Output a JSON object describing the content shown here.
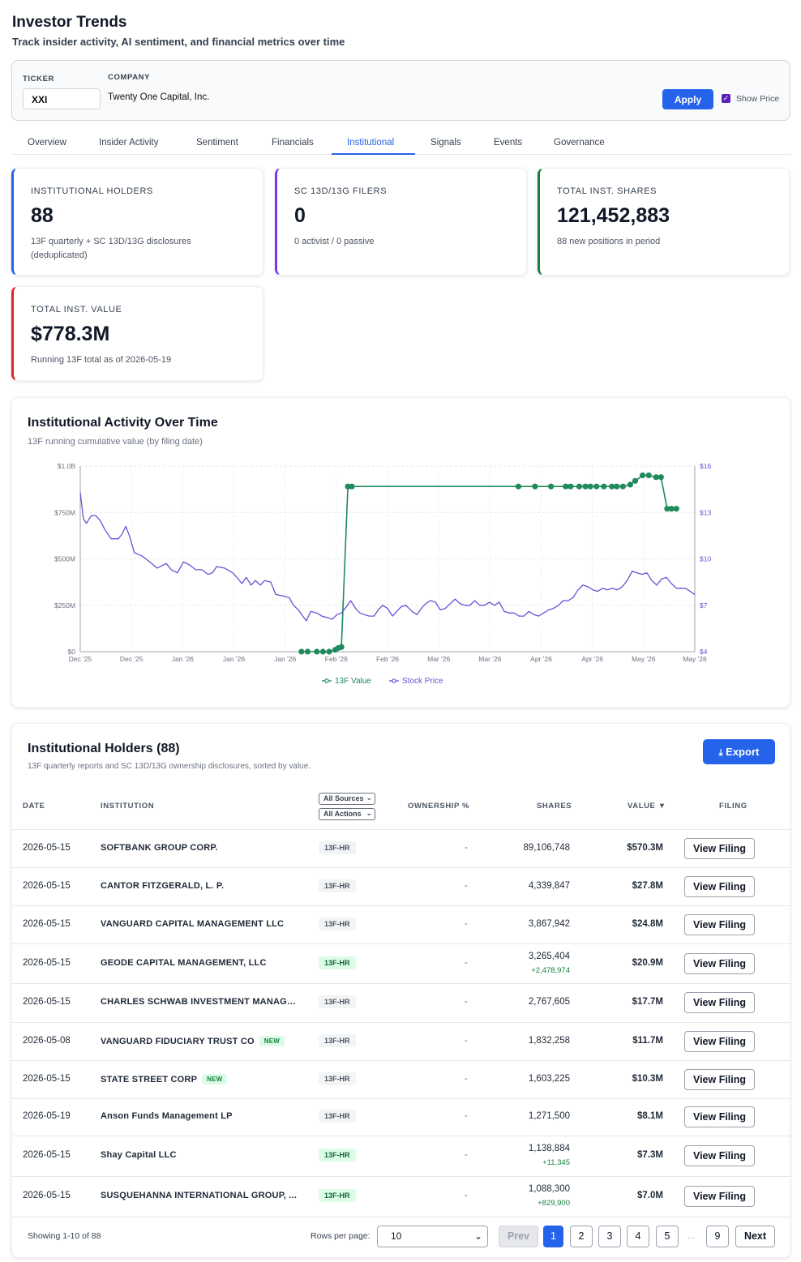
{
  "header": {
    "title": "Investor Trends",
    "subtitle": "Track insider activity, AI sentiment, and financial metrics over time"
  },
  "filters": {
    "ticker_label": "TICKER",
    "ticker_value": "XXI",
    "company_label": "COMPANY",
    "company_value": "Twenty One Capital, Inc.",
    "apply_label": "Apply",
    "show_price_label": "Show Price",
    "show_price_checked": true
  },
  "tabs": [
    "Overview",
    "Insider Activity",
    "Sentiment",
    "Financials",
    "Institutional",
    "Signals",
    "Events",
    "Governance"
  ],
  "active_tab": "Institutional",
  "kpis": [
    {
      "label": "INSTITUTIONAL HOLDERS",
      "value": "88",
      "note": "13F quarterly + SC 13D/13G disclosures (deduplicated)",
      "color": "#2563eb"
    },
    {
      "label": "SC 13D/13G FILERS",
      "value": "0",
      "note": "0 activist / 0 passive",
      "color": "#7c3aed"
    },
    {
      "label": "TOTAL INST. SHARES",
      "value": "121,452,883",
      "note": "88 new positions in period",
      "color": "#15803d"
    },
    {
      "label": "TOTAL INST. VALUE",
      "value": "$778.3M",
      "note": "Running 13F total as of 2026-05-19",
      "color": "#dc2626"
    }
  ],
  "chart": {
    "title": "Institutional Activity Over Time",
    "subtitle": "13F running cumulative value (by filing date)"
  },
  "chart_data": {
    "type": "line",
    "left_ticks": [
      "$0",
      "$250M",
      "$500M",
      "$750M",
      "$1.0B"
    ],
    "right_ticks": [
      "$4",
      "$7",
      "$10",
      "$13",
      "$16"
    ],
    "x_ticks": [
      "Dec '25",
      "Dec '25",
      "Jan '26",
      "Jan '26",
      "Jan '26",
      "Feb '26",
      "Feb '26",
      "Mar '26",
      "Mar '26",
      "Apr '26",
      "Apr '26",
      "May '26",
      "May '26"
    ],
    "ylim_left": [
      0,
      1000
    ],
    "ylim_right": [
      4,
      16
    ],
    "grid": true,
    "legend_position": "bottom",
    "series": [
      {
        "name": "13F Value",
        "axis": "left",
        "color": "#1f8a5b",
        "markers": true,
        "points": [
          [
            0.36,
            0
          ],
          [
            0.37,
            0
          ],
          [
            0.385,
            0
          ],
          [
            0.395,
            0
          ],
          [
            0.405,
            0
          ],
          [
            0.415,
            10
          ],
          [
            0.42,
            20
          ],
          [
            0.425,
            25
          ],
          [
            0.4355,
            890
          ],
          [
            0.442,
            890
          ],
          [
            0.713,
            890
          ],
          [
            0.74,
            890
          ],
          [
            0.766,
            890
          ],
          [
            0.79,
            890
          ],
          [
            0.798,
            890
          ],
          [
            0.812,
            890
          ],
          [
            0.822,
            890
          ],
          [
            0.83,
            890
          ],
          [
            0.84,
            890
          ],
          [
            0.852,
            890
          ],
          [
            0.865,
            890
          ],
          [
            0.873,
            890
          ],
          [
            0.883,
            890
          ],
          [
            0.895,
            900
          ],
          [
            0.903,
            920
          ],
          [
            0.915,
            950
          ],
          [
            0.925,
            950
          ],
          [
            0.937,
            940
          ],
          [
            0.945,
            940
          ],
          [
            0.955,
            770
          ],
          [
            0.962,
            770
          ],
          [
            0.97,
            770
          ]
        ]
      },
      {
        "name": "Stock Price",
        "axis": "right",
        "color": "#6d4fd6",
        "markers": false,
        "points": [
          [
            0.0,
            14.3
          ],
          [
            0.005,
            12.6
          ],
          [
            0.01,
            12.3
          ],
          [
            0.018,
            12.8
          ],
          [
            0.025,
            12.8
          ],
          [
            0.032,
            12.5
          ],
          [
            0.04,
            11.9
          ],
          [
            0.05,
            11.3
          ],
          [
            0.062,
            11.3
          ],
          [
            0.068,
            11.6
          ],
          [
            0.074,
            12.1
          ],
          [
            0.08,
            11.5
          ],
          [
            0.088,
            10.4
          ],
          [
            0.1,
            10.2
          ],
          [
            0.11,
            9.9
          ],
          [
            0.125,
            9.4
          ],
          [
            0.14,
            9.7
          ],
          [
            0.148,
            9.3
          ],
          [
            0.158,
            9.1
          ],
          [
            0.168,
            9.8
          ],
          [
            0.178,
            9.6
          ],
          [
            0.188,
            9.3
          ],
          [
            0.198,
            9.3
          ],
          [
            0.208,
            9.0
          ],
          [
            0.215,
            9.1
          ],
          [
            0.222,
            9.5
          ],
          [
            0.235,
            9.4
          ],
          [
            0.248,
            9.1
          ],
          [
            0.255,
            8.8
          ],
          [
            0.263,
            8.4
          ],
          [
            0.27,
            8.8
          ],
          [
            0.278,
            8.3
          ],
          [
            0.285,
            8.6
          ],
          [
            0.293,
            8.3
          ],
          [
            0.3,
            8.6
          ],
          [
            0.31,
            8.5
          ],
          [
            0.318,
            7.7
          ],
          [
            0.33,
            7.6
          ],
          [
            0.34,
            7.5
          ],
          [
            0.347,
            7.0
          ],
          [
            0.355,
            6.7
          ],
          [
            0.362,
            6.3
          ],
          [
            0.368,
            6.0
          ],
          [
            0.375,
            6.6
          ],
          [
            0.385,
            6.5
          ],
          [
            0.393,
            6.3
          ],
          [
            0.402,
            6.2
          ],
          [
            0.41,
            6.1
          ],
          [
            0.418,
            6.4
          ],
          [
            0.425,
            6.5
          ],
          [
            0.433,
            6.9
          ],
          [
            0.44,
            7.3
          ],
          [
            0.448,
            6.8
          ],
          [
            0.455,
            6.5
          ],
          [
            0.462,
            6.4
          ],
          [
            0.47,
            6.3
          ],
          [
            0.478,
            6.3
          ],
          [
            0.485,
            6.7
          ],
          [
            0.492,
            7.0
          ],
          [
            0.5,
            6.8
          ],
          [
            0.508,
            6.3
          ],
          [
            0.515,
            6.6
          ],
          [
            0.522,
            6.9
          ],
          [
            0.53,
            7.0
          ],
          [
            0.54,
            6.6
          ],
          [
            0.548,
            6.4
          ],
          [
            0.555,
            6.8
          ],
          [
            0.562,
            7.1
          ],
          [
            0.57,
            7.3
          ],
          [
            0.578,
            7.2
          ],
          [
            0.586,
            6.7
          ],
          [
            0.594,
            6.8
          ],
          [
            0.602,
            7.1
          ],
          [
            0.61,
            7.4
          ],
          [
            0.618,
            7.1
          ],
          [
            0.626,
            7.0
          ],
          [
            0.634,
            7.0
          ],
          [
            0.642,
            7.3
          ],
          [
            0.65,
            7.0
          ],
          [
            0.658,
            7.0
          ],
          [
            0.666,
            7.2
          ],
          [
            0.674,
            7.0
          ],
          [
            0.682,
            7.2
          ],
          [
            0.69,
            6.6
          ],
          [
            0.698,
            6.5
          ],
          [
            0.706,
            6.5
          ],
          [
            0.714,
            6.3
          ],
          [
            0.722,
            6.3
          ],
          [
            0.73,
            6.6
          ],
          [
            0.738,
            6.4
          ],
          [
            0.746,
            6.3
          ],
          [
            0.754,
            6.5
          ],
          [
            0.762,
            6.7
          ],
          [
            0.77,
            6.8
          ],
          [
            0.778,
            7.0
          ],
          [
            0.786,
            7.3
          ],
          [
            0.794,
            7.3
          ],
          [
            0.802,
            7.5
          ],
          [
            0.81,
            8.0
          ],
          [
            0.818,
            8.3
          ],
          [
            0.826,
            8.2
          ],
          [
            0.834,
            8.0
          ],
          [
            0.842,
            7.9
          ],
          [
            0.85,
            8.1
          ],
          [
            0.858,
            8.0
          ],
          [
            0.866,
            8.1
          ],
          [
            0.874,
            8.0
          ],
          [
            0.882,
            8.2
          ],
          [
            0.89,
            8.6
          ],
          [
            0.898,
            9.2
          ],
          [
            0.906,
            9.1
          ],
          [
            0.914,
            9.0
          ],
          [
            0.922,
            9.1
          ],
          [
            0.93,
            8.6
          ],
          [
            0.938,
            8.3
          ],
          [
            0.946,
            8.7
          ],
          [
            0.954,
            8.8
          ],
          [
            0.962,
            8.4
          ],
          [
            0.97,
            8.1
          ],
          [
            0.985,
            8.1
          ],
          [
            1.0,
            7.7
          ]
        ]
      }
    ]
  },
  "table": {
    "title": "Institutional Holders (88)",
    "subtitle": "13F quarterly reports and SC 13D/13G ownership disclosures, sorted by value.",
    "export_label": "Export",
    "headers": {
      "date": "DATE",
      "institution": "INSTITUTION",
      "ownership": "OWNERSHIP %",
      "shares": "SHARES",
      "value": "VALUE ▼",
      "filing": "FILING"
    },
    "source_filter": "All Sources",
    "action_filter": "All Actions",
    "view_label": "View Filing",
    "rows": [
      {
        "date": "2026-05-15",
        "institution": "SOFTBANK GROUP CORP.",
        "new": "",
        "form": "13F-HR",
        "green": false,
        "ownership": "-",
        "shares": "89,106,748",
        "delta": "",
        "value": "$570.3M"
      },
      {
        "date": "2026-05-15",
        "institution": "CANTOR FITZGERALD, L. P.",
        "new": "",
        "form": "13F-HR",
        "green": false,
        "ownership": "-",
        "shares": "4,339,847",
        "delta": "",
        "value": "$27.8M"
      },
      {
        "date": "2026-05-15",
        "institution": "VANGUARD CAPITAL MANAGEMENT LLC",
        "new": "",
        "form": "13F-HR",
        "green": false,
        "ownership": "-",
        "shares": "3,867,942",
        "delta": "",
        "value": "$24.8M"
      },
      {
        "date": "2026-05-15",
        "institution": "GEODE CAPITAL MANAGEMENT, LLC",
        "new": "",
        "form": "13F-HR",
        "green": true,
        "ownership": "-",
        "shares": "3,265,404",
        "delta": "+2,478,974",
        "value": "$20.9M"
      },
      {
        "date": "2026-05-15",
        "institution": "CHARLES SCHWAB INVESTMENT MANAGE...",
        "new": "",
        "form": "13F-HR",
        "green": false,
        "ownership": "-",
        "shares": "2,767,605",
        "delta": "",
        "value": "$17.7M"
      },
      {
        "date": "2026-05-08",
        "institution": "VANGUARD FIDUCIARY TRUST CO",
        "new": "NEW",
        "form": "13F-HR",
        "green": false,
        "ownership": "-",
        "shares": "1,832,258",
        "delta": "",
        "value": "$11.7M"
      },
      {
        "date": "2026-05-15",
        "institution": "STATE STREET CORP",
        "new": "NEW",
        "form": "13F-HR",
        "green": false,
        "ownership": "-",
        "shares": "1,603,225",
        "delta": "",
        "value": "$10.3M"
      },
      {
        "date": "2026-05-19",
        "institution": "Anson Funds Management LP",
        "new": "",
        "form": "13F-HR",
        "green": false,
        "ownership": "-",
        "shares": "1,271,500",
        "delta": "",
        "value": "$8.1M"
      },
      {
        "date": "2026-05-15",
        "institution": "Shay Capital LLC",
        "new": "",
        "form": "13F-HR",
        "green": true,
        "ownership": "-",
        "shares": "1,138,884",
        "delta": "+11,345",
        "value": "$7.3M"
      },
      {
        "date": "2026-05-15",
        "institution": "SUSQUEHANNA INTERNATIONAL GROUP, ...",
        "new": "",
        "form": "13F-HR",
        "green": true,
        "ownership": "-",
        "shares": "1,088,300",
        "delta": "+829,900",
        "value": "$7.0M"
      }
    ]
  },
  "pagination": {
    "showing": "Showing 1-10 of 88",
    "rows_per_page_label": "Rows per page:",
    "rows_per_page": "10",
    "prev": "Prev",
    "next": "Next",
    "pages": [
      "1",
      "2",
      "3",
      "4",
      "5"
    ],
    "ellipsis": "...",
    "last_page": "9",
    "current": "1"
  }
}
